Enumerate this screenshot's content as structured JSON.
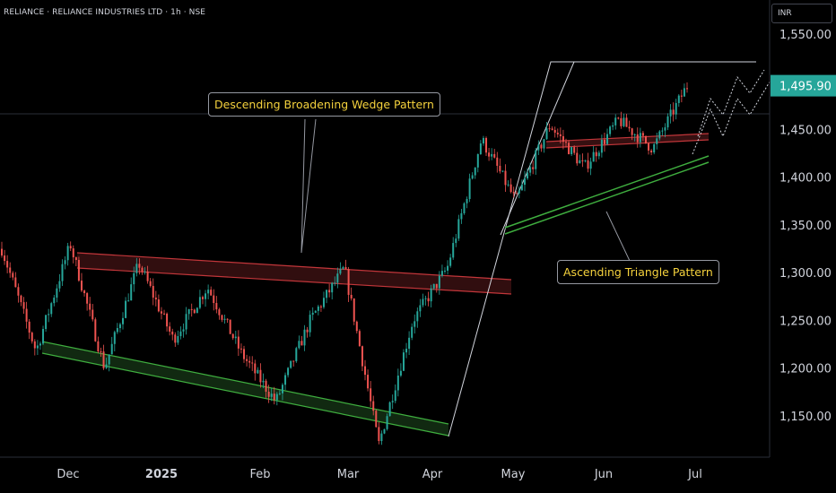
{
  "header": {
    "symbol_line": "RELIANCE · RELIANCE INDUSTRIES LTD · 1h · NSE"
  },
  "currency_button": "INR",
  "annotations": {
    "broadening_wedge": "Descending Broadening Wedge Pattern",
    "ascending_triangle": "Ascending Triangle Pattern"
  },
  "colors": {
    "background": "#000000",
    "candle_up": "#26a69a",
    "candle_down": "#ef5350",
    "resistance_line": "#c2363a",
    "support_line": "#3fae3f",
    "annotation_text": "#f5d23d",
    "price_label_bg": "#26a69a"
  },
  "chart_data": {
    "type": "candlestick",
    "x_axis": {
      "ticks": [
        "Dec",
        "2025",
        "Feb",
        "Mar",
        "Apr",
        "May",
        "Jun",
        "Jul"
      ]
    },
    "y_axis": {
      "ticks": [
        "1,550.00",
        "1,500.00",
        "1,450.00",
        "1,400.00",
        "1,350.00",
        "1,300.00",
        "1,250.00",
        "1,200.00",
        "1,150.00"
      ],
      "range": [
        1100,
        1600
      ]
    },
    "last_price": "1,495.90",
    "price_path": [
      {
        "t": "start",
        "price": 1325
      },
      {
        "t": "Nov-end",
        "price": 1218
      },
      {
        "t": "late-Nov",
        "price": 1330
      },
      {
        "t": "mid-Dec",
        "price": 1200
      },
      {
        "t": "Jan",
        "price": 1310
      },
      {
        "t": "Jan-mid",
        "price": 1230
      },
      {
        "t": "Feb",
        "price": 1285
      },
      {
        "t": "Feb-mid",
        "price": 1215
      },
      {
        "t": "Mar",
        "price": 1165
      },
      {
        "t": "Mar-mid",
        "price": 1250
      },
      {
        "t": "Mar-end",
        "price": 1305
      },
      {
        "t": "Apr-early",
        "price": 1120
      },
      {
        "t": "Apr-mid",
        "price": 1250
      },
      {
        "t": "Apr-end",
        "price": 1305
      },
      {
        "t": "May-early",
        "price": 1440
      },
      {
        "t": "May",
        "price": 1375
      },
      {
        "t": "May-mid",
        "price": 1455
      },
      {
        "t": "Jun",
        "price": 1410
      },
      {
        "t": "Jun-mid",
        "price": 1460
      },
      {
        "t": "Jun-end",
        "price": 1430
      },
      {
        "t": "end",
        "price": 1495.9
      }
    ]
  }
}
